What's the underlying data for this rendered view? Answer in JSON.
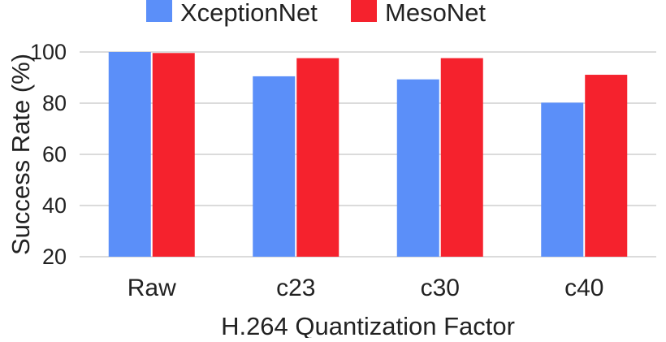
{
  "chart_data": {
    "type": "bar",
    "title": "",
    "xlabel": "H.264 Quantization Factor",
    "ylabel": "Success Rate (%)",
    "categories": [
      "Raw",
      "c23",
      "c30",
      "c40"
    ],
    "series": [
      {
        "name": "XceptionNet",
        "values": [
          100,
          90.5,
          89.3,
          80.2
        ],
        "color": "#5b8ff9"
      },
      {
        "name": "MesoNet",
        "values": [
          99.6,
          97.6,
          97.6,
          91.1
        ],
        "color": "#f5222d"
      }
    ],
    "yticks": [
      20,
      40,
      60,
      80,
      100
    ],
    "ylim": [
      20,
      100
    ],
    "grid": true,
    "legend_position": "top"
  }
}
